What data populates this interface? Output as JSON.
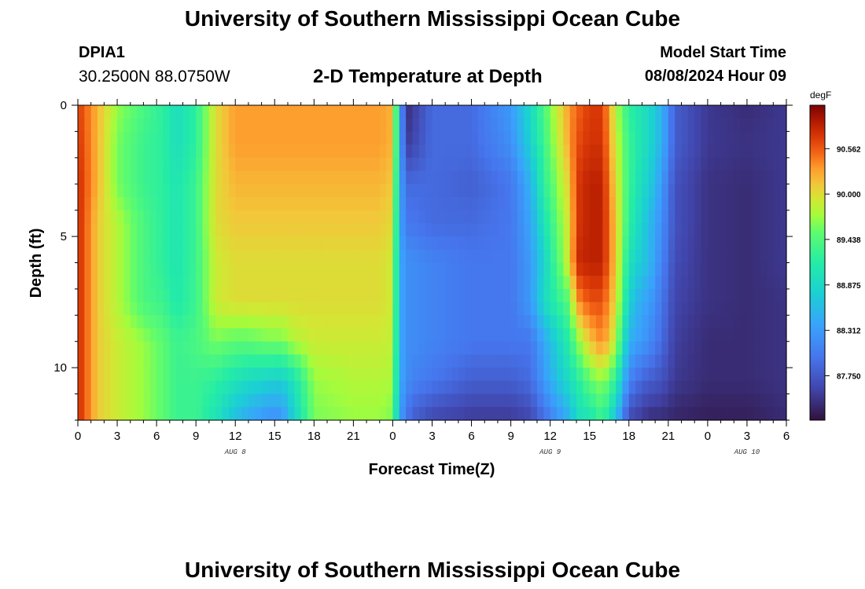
{
  "header": {
    "title": "University of Southern Mississippi Ocean Cube",
    "station": "DPIA1",
    "coords": "30.2500N  88.0750W",
    "subtitle": "2-D Temperature at Depth",
    "start_label": "Model Start Time",
    "start_value": "08/08/2024 Hour 09"
  },
  "footer": {
    "title": "University of Southern Mississippi Ocean Cube"
  },
  "chart_data": {
    "type": "heatmap",
    "title": "2-D Temperature at Depth",
    "xlabel": "Forecast Time(Z)",
    "ylabel": "Depth (ft)",
    "x_tick_labels": [
      "0",
      "3",
      "6",
      "9",
      "12",
      "15",
      "18",
      "21",
      "0",
      "3",
      "6",
      "9",
      "12",
      "15",
      "18",
      "21",
      "0",
      "3",
      "6"
    ],
    "x_day_labels": [
      {
        "label": "AUG 8",
        "hour": 12
      },
      {
        "label": "AUG 9",
        "hour": 36
      },
      {
        "label": "AUG 10",
        "hour": 51
      }
    ],
    "xlim_hours": [
      0,
      54
    ],
    "y_ticks": [
      0,
      5,
      10
    ],
    "ylim_ft": [
      0,
      12
    ],
    "colorbar": {
      "unit": "degF",
      "tick_labels": [
        "90.562",
        "90.000",
        "89.438",
        "88.875",
        "88.312",
        "87.750"
      ],
      "tick_values": [
        90.562,
        90.0,
        89.438,
        88.875,
        88.312,
        87.75
      ],
      "range": [
        87.2,
        91.1
      ]
    },
    "depths_ft": [
      0,
      1.5,
      3,
      4.5,
      6,
      7.5,
      9,
      10.5,
      12
    ],
    "time_nodes_hours": [
      0,
      1.5,
      3,
      5,
      6.5,
      7.5,
      9,
      10.5,
      12,
      13,
      14.5,
      15.5,
      16.5,
      18,
      21,
      23,
      24,
      24.5,
      25,
      25.5,
      27,
      30,
      33,
      34.5,
      35.5,
      37.5,
      38,
      39,
      40,
      41,
      42,
      43,
      43.5,
      44.5,
      45.5,
      48,
      51,
      54
    ],
    "temperature_degF": [
      [
        90.7,
        90.2,
        89.7,
        89.4,
        89.2,
        88.95,
        89.2,
        90.0,
        90.3,
        90.3,
        90.3,
        90.3,
        90.3,
        90.3,
        90.3,
        90.3,
        90.2,
        88.6,
        87.4,
        87.5,
        87.9,
        87.9,
        88.3,
        88.9,
        89.4,
        90.35,
        90.5,
        90.7,
        90.7,
        89.8,
        89.2,
        89.0,
        88.9,
        88.5,
        87.8,
        87.5,
        87.4,
        87.5
      ],
      [
        90.75,
        90.2,
        89.6,
        89.3,
        89.2,
        88.95,
        89.2,
        90.0,
        90.3,
        90.3,
        90.3,
        90.3,
        90.3,
        90.3,
        90.3,
        90.3,
        90.2,
        88.6,
        87.5,
        87.6,
        87.9,
        87.9,
        88.2,
        88.8,
        89.3,
        90.3,
        90.6,
        90.75,
        90.75,
        89.9,
        89.3,
        89.0,
        88.9,
        88.5,
        87.8,
        87.5,
        87.45,
        87.5
      ],
      [
        90.8,
        90.2,
        89.6,
        89.3,
        89.2,
        89.05,
        89.3,
        90.0,
        90.2,
        90.2,
        90.2,
        90.2,
        90.2,
        90.2,
        90.2,
        90.2,
        90.1,
        88.5,
        87.9,
        87.9,
        87.9,
        87.8,
        88.0,
        88.5,
        89.2,
        90.1,
        90.7,
        90.85,
        90.85,
        90.0,
        89.3,
        88.9,
        88.8,
        88.3,
        87.7,
        87.45,
        87.4,
        87.5
      ],
      [
        90.8,
        90.1,
        89.8,
        89.4,
        89.2,
        89.05,
        89.3,
        90.0,
        90.1,
        90.1,
        90.1,
        90.1,
        90.1,
        90.1,
        90.1,
        90.1,
        90.0,
        88.5,
        88.0,
        88.0,
        87.9,
        87.9,
        88.0,
        88.4,
        89.0,
        90.0,
        90.7,
        90.85,
        90.85,
        90.1,
        89.2,
        88.8,
        88.6,
        88.2,
        87.7,
        87.45,
        87.4,
        87.5
      ],
      [
        90.8,
        90.1,
        89.8,
        89.4,
        89.2,
        89.05,
        89.3,
        89.9,
        90.0,
        90.0,
        90.0,
        90.0,
        90.0,
        90.0,
        90.0,
        90.0,
        89.9,
        88.5,
        88.2,
        88.2,
        88.1,
        88.0,
        88.0,
        88.3,
        88.8,
        90.0,
        90.8,
        90.85,
        90.85,
        90.1,
        89.0,
        88.7,
        88.6,
        88.1,
        87.65,
        87.45,
        87.4,
        87.5
      ],
      [
        90.8,
        90.1,
        89.8,
        89.4,
        89.3,
        89.1,
        89.3,
        89.9,
        90.0,
        90.0,
        90.0,
        90.0,
        90.0,
        90.0,
        90.0,
        90.0,
        89.9,
        88.5,
        88.2,
        88.2,
        88.1,
        88.0,
        88.0,
        88.3,
        88.9,
        89.5,
        90.3,
        90.6,
        90.6,
        90.0,
        88.8,
        88.4,
        88.35,
        88.0,
        87.6,
        87.45,
        87.4,
        87.45
      ],
      [
        90.8,
        90.1,
        89.9,
        89.7,
        89.5,
        89.3,
        89.4,
        89.6,
        89.5,
        89.5,
        89.6,
        89.6,
        89.8,
        89.9,
        89.9,
        89.9,
        89.85,
        88.5,
        88.2,
        88.2,
        88.1,
        88.0,
        88.0,
        88.0,
        88.4,
        89.2,
        89.6,
        90.1,
        90.4,
        89.8,
        88.5,
        88.3,
        88.2,
        87.9,
        87.55,
        87.4,
        87.4,
        87.45
      ],
      [
        90.8,
        90.1,
        89.9,
        89.7,
        89.5,
        89.3,
        89.3,
        89.2,
        89.0,
        88.9,
        88.8,
        88.75,
        89.0,
        89.7,
        89.8,
        89.8,
        89.75,
        88.5,
        88.2,
        88.1,
        88.0,
        87.8,
        87.8,
        87.9,
        88.3,
        88.95,
        89.1,
        89.5,
        89.7,
        89.2,
        88.1,
        87.85,
        87.8,
        87.7,
        87.5,
        87.4,
        87.4,
        87.45
      ],
      [
        90.8,
        90.1,
        89.9,
        89.7,
        89.5,
        89.3,
        89.3,
        89.0,
        88.6,
        88.4,
        88.2,
        88.2,
        88.8,
        89.6,
        89.7,
        89.7,
        89.6,
        88.4,
        88.0,
        87.8,
        87.6,
        87.5,
        87.5,
        87.6,
        87.9,
        88.5,
        88.9,
        89.0,
        89.3,
        88.6,
        87.6,
        87.5,
        87.4,
        87.4,
        87.35,
        87.3,
        87.3,
        87.4
      ]
    ]
  }
}
